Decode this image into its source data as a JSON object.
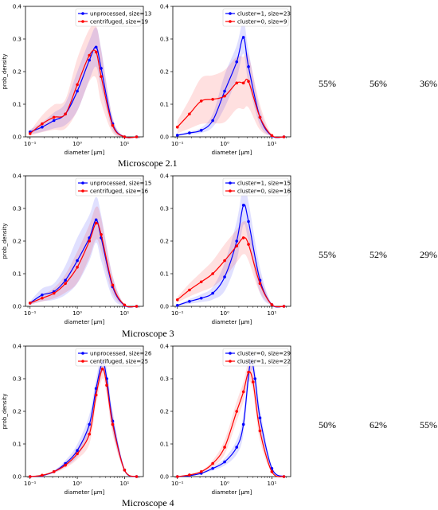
{
  "captions": [
    "Microscope 2.1",
    "Microscope 3",
    "Microscope 4"
  ],
  "percentages": [
    [
      "55%",
      "56%",
      "36%"
    ],
    [
      "55%",
      "52%",
      "29%"
    ],
    [
      "50%",
      "62%",
      "55%"
    ]
  ],
  "colors": {
    "blue": "#0000ff",
    "red": "#ff0000"
  },
  "chart_data": [
    {
      "type": "line",
      "xscale": "log",
      "xlim": [
        0.08,
        25
      ],
      "ylim": [
        0,
        0.4
      ],
      "xlabel": "diameter [μm]",
      "ylabel": "prob_density",
      "xticks": [
        "10⁻¹",
        "10⁰",
        "10¹"
      ],
      "yticks": [
        "0.0",
        "0.1",
        "0.2",
        "0.3",
        "0.4"
      ],
      "legend_placement": "top-right",
      "series": [
        {
          "name": "unprocessed, size=13",
          "color": "blue",
          "x": [
            0.1,
            0.18,
            0.32,
            0.56,
            1.0,
            1.8,
            2.5,
            3.2,
            5.6,
            10,
            18
          ],
          "y": [
            0.015,
            0.03,
            0.05,
            0.07,
            0.14,
            0.235,
            0.275,
            0.21,
            0.04,
            0.0,
            0.0
          ],
          "band": 0.06
        },
        {
          "name": "centrifuged, size=19",
          "color": "red",
          "x": [
            0.1,
            0.18,
            0.32,
            0.56,
            1.0,
            1.8,
            2.5,
            3.2,
            5.6,
            10,
            18
          ],
          "y": [
            0.01,
            0.04,
            0.06,
            0.07,
            0.16,
            0.25,
            0.26,
            0.185,
            0.035,
            0.0,
            0.0
          ],
          "band": 0.08
        }
      ]
    },
    {
      "type": "line",
      "xscale": "log",
      "xlim": [
        0.08,
        25
      ],
      "ylim": [
        0,
        0.4
      ],
      "xlabel": "diameter [μm]",
      "ylabel": "",
      "xticks": [
        "10⁻¹",
        "10⁰",
        "10¹"
      ],
      "yticks": [
        "0.0",
        "0.1",
        "0.2",
        "0.3",
        "0.4"
      ],
      "legend_placement": "top-right",
      "series": [
        {
          "name": "cluster=1, size=23",
          "color": "blue",
          "x": [
            0.1,
            0.18,
            0.32,
            0.56,
            1.0,
            1.8,
            2.5,
            3.2,
            5.6,
            10,
            18
          ],
          "y": [
            0.005,
            0.012,
            0.02,
            0.05,
            0.14,
            0.23,
            0.305,
            0.215,
            0.06,
            0.003,
            0.0
          ],
          "band": 0.05
        },
        {
          "name": "cluster=0, size=9",
          "color": "red",
          "x": [
            0.1,
            0.18,
            0.32,
            0.56,
            1.0,
            1.8,
            2.5,
            3.2,
            5.6,
            10,
            18
          ],
          "y": [
            0.03,
            0.07,
            0.11,
            0.115,
            0.125,
            0.165,
            0.165,
            0.17,
            0.06,
            0.004,
            0.0
          ],
          "band": 0.08
        }
      ]
    },
    {
      "type": "line",
      "xscale": "log",
      "xlim": [
        0.08,
        25
      ],
      "ylim": [
        0,
        0.4
      ],
      "xlabel": "diameter [μm]",
      "ylabel": "prob_density",
      "xticks": [
        "10⁻¹",
        "10⁰",
        "10¹"
      ],
      "yticks": [
        "0.0",
        "0.1",
        "0.2",
        "0.3",
        "0.4"
      ],
      "legend_placement": "top-right",
      "series": [
        {
          "name": "unprocessed, size=15",
          "color": "blue",
          "x": [
            0.1,
            0.18,
            0.32,
            0.56,
            1.0,
            1.8,
            2.5,
            3.2,
            5.6,
            10,
            18
          ],
          "y": [
            0.01,
            0.035,
            0.045,
            0.08,
            0.14,
            0.21,
            0.265,
            0.21,
            0.06,
            0.003,
            0.0
          ],
          "band": 0.07
        },
        {
          "name": "centrifuged, size=16",
          "color": "red",
          "x": [
            0.1,
            0.18,
            0.32,
            0.56,
            1.0,
            1.8,
            2.5,
            3.2,
            5.6,
            10,
            18
          ],
          "y": [
            0.01,
            0.025,
            0.04,
            0.07,
            0.12,
            0.2,
            0.255,
            0.22,
            0.065,
            0.004,
            0.0
          ],
          "band": 0.05
        }
      ]
    },
    {
      "type": "line",
      "xscale": "log",
      "xlim": [
        0.08,
        25
      ],
      "ylim": [
        0,
        0.4
      ],
      "xlabel": "diameter [μm]",
      "ylabel": "",
      "xticks": [
        "10⁻¹",
        "10⁰",
        "10¹"
      ],
      "yticks": [
        "0.0",
        "0.1",
        "0.2",
        "0.3",
        "0.4"
      ],
      "legend_placement": "top-right",
      "series": [
        {
          "name": "cluster=1, size=15",
          "color": "blue",
          "x": [
            0.1,
            0.18,
            0.32,
            0.56,
            1.0,
            1.8,
            2.5,
            3.2,
            5.6,
            10,
            18
          ],
          "y": [
            0.003,
            0.015,
            0.025,
            0.04,
            0.09,
            0.2,
            0.31,
            0.26,
            0.08,
            0.005,
            0.0
          ],
          "band": 0.06
        },
        {
          "name": "cluster=0, size=16",
          "color": "red",
          "x": [
            0.1,
            0.18,
            0.32,
            0.56,
            1.0,
            1.8,
            2.5,
            3.2,
            5.6,
            10,
            18
          ],
          "y": [
            0.02,
            0.05,
            0.075,
            0.1,
            0.14,
            0.185,
            0.21,
            0.19,
            0.07,
            0.005,
            0.0
          ],
          "band": 0.05
        }
      ]
    },
    {
      "type": "line",
      "xscale": "log",
      "xlim": [
        0.08,
        25
      ],
      "ylim": [
        0,
        0.4
      ],
      "xlabel": "diameter [μm]",
      "ylabel": "prob_density",
      "xticks": [
        "10⁻¹",
        "10⁰",
        "10¹"
      ],
      "yticks": [
        "0.0",
        "0.1",
        "0.2",
        "0.3",
        "0.4"
      ],
      "legend_placement": "top-right",
      "series": [
        {
          "name": "unprocessed, size=26",
          "color": "blue",
          "x": [
            0.1,
            0.18,
            0.32,
            0.56,
            1.0,
            1.8,
            2.5,
            3.4,
            4.2,
            5.6,
            10,
            18
          ],
          "y": [
            0.0,
            0.003,
            0.015,
            0.04,
            0.08,
            0.16,
            0.27,
            0.35,
            0.3,
            0.17,
            0.02,
            0.0
          ],
          "band": 0.03
        },
        {
          "name": "centrifuged, size=25",
          "color": "red",
          "x": [
            0.1,
            0.18,
            0.32,
            0.56,
            1.0,
            1.8,
            2.5,
            3.4,
            4.2,
            5.6,
            10,
            18
          ],
          "y": [
            0.0,
            0.004,
            0.015,
            0.035,
            0.07,
            0.13,
            0.25,
            0.33,
            0.28,
            0.16,
            0.02,
            0.0
          ],
          "band": 0.03
        }
      ]
    },
    {
      "type": "line",
      "xscale": "log",
      "xlim": [
        0.08,
        25
      ],
      "ylim": [
        0,
        0.4
      ],
      "xlabel": "diameter [μm]",
      "ylabel": "",
      "xticks": [
        "10⁻¹",
        "10⁰",
        "10¹"
      ],
      "yticks": [
        "0.0",
        "0.1",
        "0.2",
        "0.3",
        "0.4"
      ],
      "legend_placement": "top-right",
      "series": [
        {
          "name": "cluster=0, size=29",
          "color": "blue",
          "x": [
            0.1,
            0.18,
            0.32,
            0.56,
            1.0,
            1.8,
            2.5,
            3.5,
            4.4,
            5.6,
            10,
            18
          ],
          "y": [
            0.0,
            0.003,
            0.01,
            0.025,
            0.045,
            0.09,
            0.16,
            0.35,
            0.3,
            0.18,
            0.025,
            0.0
          ],
          "band": 0.03
        },
        {
          "name": "cluster=1, size=22",
          "color": "red",
          "x": [
            0.1,
            0.18,
            0.32,
            0.56,
            1.0,
            1.8,
            2.5,
            3.2,
            4.0,
            5.6,
            10,
            18
          ],
          "y": [
            0.0,
            0.005,
            0.015,
            0.04,
            0.09,
            0.2,
            0.26,
            0.32,
            0.29,
            0.14,
            0.015,
            0.0
          ],
          "band": 0.03
        }
      ]
    }
  ]
}
